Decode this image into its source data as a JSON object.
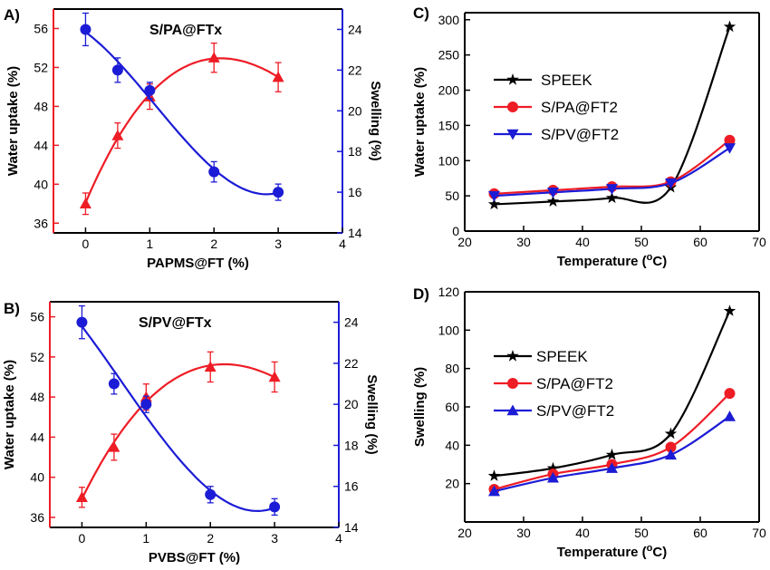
{
  "colors": {
    "red": "#ee1c25",
    "blue": "#1c1cd6",
    "black": "#000000"
  },
  "chart_data": [
    {
      "panel": "A)",
      "type": "scatter",
      "inner_title": "S/PA@FTx",
      "xlabel": "PAPMS@FT (%)",
      "ylabel": "Water uptake (%)",
      "y2label": "Swelling (%)",
      "xlim": [
        -0.5,
        4
      ],
      "ylim": [
        35,
        58
      ],
      "y2lim": [
        14,
        25
      ],
      "xticks": [
        0,
        1,
        2,
        3,
        4
      ],
      "yticks": [
        36,
        40,
        44,
        48,
        52,
        56
      ],
      "y2ticks": [
        14,
        16,
        18,
        20,
        22,
        24
      ],
      "series": [
        {
          "axis": "left",
          "marker": "triangle-up",
          "color": "red",
          "x": [
            0,
            0.5,
            1,
            2,
            3
          ],
          "y": [
            38,
            45,
            49,
            53,
            51
          ],
          "err": [
            1.1,
            1.3,
            1.3,
            1.5,
            1.5
          ]
        },
        {
          "axis": "right",
          "marker": "circle",
          "color": "blue",
          "x": [
            0,
            0.5,
            1,
            2,
            3
          ],
          "y": [
            24,
            22,
            21,
            17,
            16
          ],
          "err": [
            0.8,
            0.6,
            0.4,
            0.5,
            0.4
          ]
        }
      ]
    },
    {
      "panel": "B)",
      "type": "scatter",
      "inner_title": "S/PV@FTx",
      "xlabel": "PVBS@FT (%)",
      "ylabel": "Water uptake (%)",
      "y2label": "Swelling (%)",
      "xlim": [
        -0.5,
        4
      ],
      "ylim": [
        35,
        57.5
      ],
      "y2lim": [
        14,
        25
      ],
      "xticks": [
        0,
        1,
        2,
        3,
        4
      ],
      "yticks": [
        36,
        40,
        44,
        48,
        52,
        56
      ],
      "y2ticks": [
        14,
        16,
        18,
        20,
        22,
        24
      ],
      "series": [
        {
          "axis": "left",
          "marker": "triangle-up",
          "color": "red",
          "x": [
            0,
            0.5,
            1,
            2,
            3
          ],
          "y": [
            38,
            43,
            48,
            51,
            50
          ],
          "err": [
            1.0,
            1.3,
            1.3,
            1.5,
            1.5
          ]
        },
        {
          "axis": "right",
          "marker": "circle",
          "color": "blue",
          "x": [
            0,
            0.5,
            1,
            2,
            3
          ],
          "y": [
            24,
            21,
            20,
            15.6,
            15
          ],
          "err": [
            0.8,
            0.5,
            0.4,
            0.4,
            0.4
          ]
        }
      ]
    },
    {
      "panel": "C)",
      "type": "line",
      "xlabel": "Temperature (",
      "xlabel_sup": "o",
      "xlabel_end": "C)",
      "ylabel": "Water uptake (%)",
      "xlim": [
        20,
        70
      ],
      "ylim": [
        0,
        310
      ],
      "xticks": [
        20,
        30,
        40,
        50,
        60,
        70
      ],
      "yticks": [
        0,
        50,
        100,
        150,
        200,
        250,
        300
      ],
      "legend": [
        "SPEEK",
        "S/PA@FT2",
        "S/PV@FT2"
      ],
      "series": [
        {
          "name": "SPEEK",
          "marker": "star",
          "color": "black",
          "x": [
            25,
            35,
            45,
            55,
            65
          ],
          "y": [
            38,
            42,
            47,
            62,
            290
          ]
        },
        {
          "name": "S/PA@FT2",
          "marker": "circle",
          "color": "red",
          "x": [
            25,
            35,
            45,
            55,
            65
          ],
          "y": [
            53,
            58,
            63,
            70,
            129
          ]
        },
        {
          "name": "S/PV@FT2",
          "marker": "triangle-down",
          "color": "blue",
          "x": [
            25,
            35,
            45,
            55,
            65
          ],
          "y": [
            50,
            55,
            60,
            68,
            118
          ]
        }
      ]
    },
    {
      "panel": "D)",
      "type": "line",
      "xlabel": "Temperature (",
      "xlabel_sup": "o",
      "xlabel_end": "C)",
      "ylabel": "Swelling (%)",
      "xlim": [
        20,
        70
      ],
      "ylim": [
        0,
        120
      ],
      "xticks": [
        20,
        30,
        40,
        50,
        60,
        70
      ],
      "yticks": [
        20,
        40,
        60,
        80,
        100,
        120
      ],
      "legend": [
        "SPEEK",
        "S/PA@FT2",
        "S/PV@FT2"
      ],
      "series": [
        {
          "name": "SPEEK",
          "marker": "star",
          "color": "black",
          "x": [
            25,
            35,
            45,
            55,
            65
          ],
          "y": [
            24,
            28,
            35,
            46,
            110
          ]
        },
        {
          "name": "S/PA@FT2",
          "marker": "circle",
          "color": "red",
          "x": [
            25,
            35,
            45,
            55,
            65
          ],
          "y": [
            17,
            25,
            30,
            39,
            67
          ]
        },
        {
          "name": "S/PV@FT2",
          "marker": "triangle-up",
          "color": "blue",
          "x": [
            25,
            35,
            45,
            55,
            65
          ],
          "y": [
            16,
            23,
            28,
            35,
            55
          ]
        }
      ]
    }
  ]
}
